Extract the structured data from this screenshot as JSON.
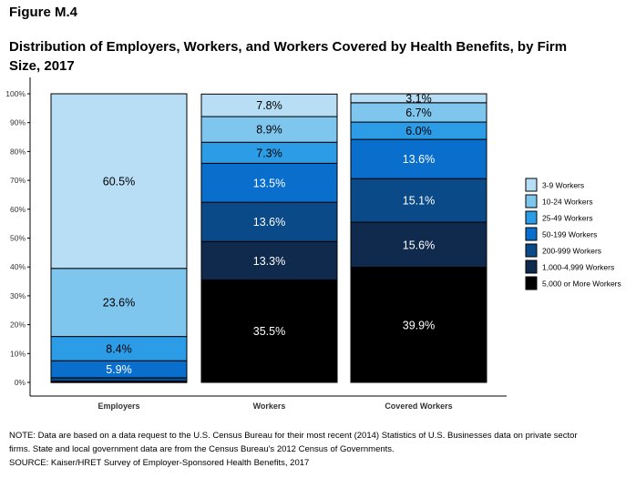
{
  "header": {
    "figure_label": "Figure M.4",
    "title": "Distribution of Employers, Workers, and Workers Covered by Health Benefits, by Firm Size, 2017"
  },
  "chart_data": {
    "type": "bar",
    "stacked": true,
    "categories": [
      "Employers",
      "Workers",
      "Covered Workers"
    ],
    "series": [
      {
        "name": "5,000 or More Workers",
        "color": "#000000",
        "label_color": "#ffffff",
        "values": [
          0.1,
          35.5,
          39.9
        ],
        "labels": [
          "",
          "35.5%",
          "39.9%"
        ]
      },
      {
        "name": "1,000-4,999 Workers",
        "color": "#102a4e",
        "label_color": "#ffffff",
        "values": [
          0.3,
          13.3,
          15.6
        ],
        "labels": [
          "",
          "13.3%",
          "15.6%"
        ]
      },
      {
        "name": "200-999 Workers",
        "color": "#0b4a88",
        "label_color": "#ffffff",
        "values": [
          1.2,
          13.6,
          15.1
        ],
        "labels": [
          "",
          "13.6%",
          "15.1%"
        ]
      },
      {
        "name": "50-199 Workers",
        "color": "#0a6fcc",
        "label_color": "#ffffff",
        "values": [
          5.9,
          13.5,
          13.6
        ],
        "labels": [
          "5.9%",
          "13.5%",
          "13.6%"
        ]
      },
      {
        "name": "25-49 Workers",
        "color": "#2c9ce6",
        "label_color": "#000000",
        "values": [
          8.4,
          7.3,
          6.0
        ],
        "labels": [
          "8.4%",
          "7.3%",
          "6.0%"
        ]
      },
      {
        "name": "10-24 Workers",
        "color": "#7fc6ef",
        "label_color": "#000000",
        "values": [
          23.6,
          8.9,
          6.7
        ],
        "labels": [
          "23.6%",
          "8.9%",
          "6.7%"
        ]
      },
      {
        "name": "3-9 Workers",
        "color": "#b8def6",
        "label_color": "#000000",
        "values": [
          60.5,
          7.8,
          3.1
        ],
        "labels": [
          "60.5%",
          "7.8%",
          "3.1%"
        ]
      }
    ],
    "y_ticks": [
      "0%",
      "10%",
      "20%",
      "30%",
      "40%",
      "50%",
      "60%",
      "70%",
      "80%",
      "90%",
      "100%"
    ],
    "ylim": [
      0,
      100
    ],
    "grid": false,
    "legend_position": "right"
  },
  "notes": {
    "line1": "NOTE: Data are based on a data request to the U.S. Census Bureau for their most recent (2014) Statistics of U.S. Businesses data on private sector",
    "line2": "firms. State and local government data are from the Census Bureau's 2012 Census of Governments.",
    "line3": "SOURCE: Kaiser/HRET Survey of Employer-Sponsored Health Benefits, 2017"
  }
}
